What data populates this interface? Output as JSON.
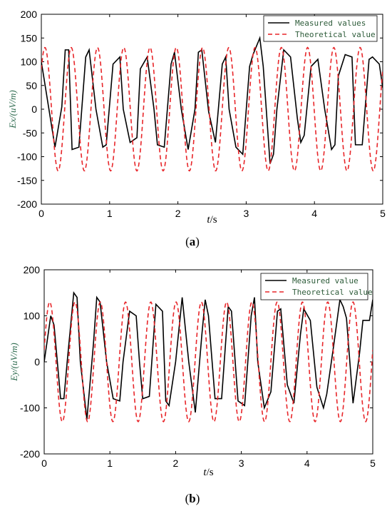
{
  "chart_data": [
    {
      "type": "line",
      "caption": "(a)",
      "caption_letter": "a",
      "xlabel": "t/s",
      "xlabel_var": "t",
      "xlabel_unit": "/s",
      "ylabel": "Ex/(uV/m)",
      "xlim": [
        0,
        5
      ],
      "ylim": [
        -200,
        200
      ],
      "xticks": [
        "0",
        "1",
        "2",
        "3",
        "4",
        "5"
      ],
      "yticks": [
        "200",
        "150",
        "100",
        "50",
        "0",
        "-50",
        "-100",
        "-150",
        "-200"
      ],
      "legend_position": "top-right",
      "series": [
        {
          "name": "Measured values",
          "color": "#000000",
          "style": "solid",
          "x": [
            0.0,
            0.1,
            0.2,
            0.3,
            0.35,
            0.4,
            0.45,
            0.55,
            0.65,
            0.7,
            0.8,
            0.9,
            0.95,
            1.05,
            1.15,
            1.2,
            1.3,
            1.4,
            1.45,
            1.55,
            1.65,
            1.7,
            1.8,
            1.9,
            1.95,
            2.05,
            2.15,
            2.25,
            2.3,
            2.35,
            2.45,
            2.55,
            2.65,
            2.7,
            2.75,
            2.85,
            2.95,
            3.05,
            3.1,
            3.2,
            3.25,
            3.35,
            3.4,
            3.45,
            3.55,
            3.65,
            3.75,
            3.8,
            3.85,
            3.95,
            4.05,
            4.15,
            4.25,
            4.3,
            4.35,
            4.45,
            4.55,
            4.6,
            4.7,
            4.8,
            4.85,
            4.95,
            5.0
          ],
          "values": [
            100,
            10,
            -80,
            5,
            125,
            125,
            -85,
            -80,
            110,
            125,
            0,
            -80,
            -75,
            95,
            110,
            0,
            -70,
            -60,
            85,
            110,
            0,
            -75,
            -80,
            95,
            120,
            0,
            -85,
            0,
            120,
            125,
            -5,
            -70,
            95,
            110,
            0,
            -80,
            -95,
            90,
            115,
            150,
            90,
            -115,
            -95,
            0,
            125,
            110,
            -20,
            -70,
            -55,
            90,
            105,
            0,
            -85,
            -75,
            70,
            115,
            110,
            -75,
            -75,
            105,
            110,
            95,
            45
          ]
        },
        {
          "name": "Theoretical value",
          "color": "#e8262a",
          "style": "dashed",
          "amplitude": 130,
          "frequency": 2.6,
          "phase": 0.7
        }
      ]
    },
    {
      "type": "line",
      "caption": "(b)",
      "caption_letter": "b",
      "xlabel": "t/s",
      "xlabel_var": "t",
      "xlabel_unit": "/s",
      "ylabel": "Ey/(uV/m)",
      "xlim": [
        0,
        5
      ],
      "ylim": [
        -200,
        200
      ],
      "xticks": [
        "0",
        "1",
        "2",
        "3",
        "4",
        "5"
      ],
      "yticks": [
        "200",
        "100",
        "0",
        "-100",
        "-200"
      ],
      "legend_position": "top-right",
      "series": [
        {
          "name": "Measured value",
          "color": "#000000",
          "style": "solid",
          "x": [
            0.0,
            0.1,
            0.15,
            0.25,
            0.3,
            0.35,
            0.45,
            0.5,
            0.55,
            0.65,
            0.75,
            0.8,
            0.85,
            0.95,
            1.05,
            1.15,
            1.2,
            1.3,
            1.4,
            1.45,
            1.5,
            1.6,
            1.7,
            1.8,
            1.85,
            1.9,
            2.0,
            2.1,
            2.2,
            2.3,
            2.4,
            2.45,
            2.5,
            2.6,
            2.7,
            2.8,
            2.85,
            2.95,
            3.05,
            3.15,
            3.2,
            3.25,
            3.35,
            3.45,
            3.55,
            3.6,
            3.7,
            3.8,
            3.9,
            3.95,
            4.05,
            4.15,
            4.25,
            4.3,
            4.4,
            4.5,
            4.55,
            4.6,
            4.7,
            4.8,
            4.85,
            4.95,
            5.0
          ],
          "values": [
            0,
            100,
            80,
            -80,
            -80,
            0,
            150,
            140,
            0,
            -125,
            40,
            140,
            130,
            0,
            -80,
            -85,
            0,
            110,
            100,
            0,
            -80,
            -75,
            125,
            110,
            -85,
            -95,
            0,
            140,
            0,
            -110,
            60,
            135,
            100,
            -80,
            -80,
            120,
            110,
            -85,
            -95,
            100,
            140,
            0,
            -100,
            -65,
            110,
            115,
            -50,
            -90,
            60,
            115,
            90,
            -55,
            -100,
            -70,
            30,
            135,
            120,
            95,
            -90,
            20,
            90,
            90,
            135
          ]
        },
        {
          "name": "Theoretical value",
          "color": "#e8262a",
          "style": "dashed",
          "amplitude": 130,
          "frequency": 2.6,
          "phase": 0.2
        }
      ]
    }
  ]
}
